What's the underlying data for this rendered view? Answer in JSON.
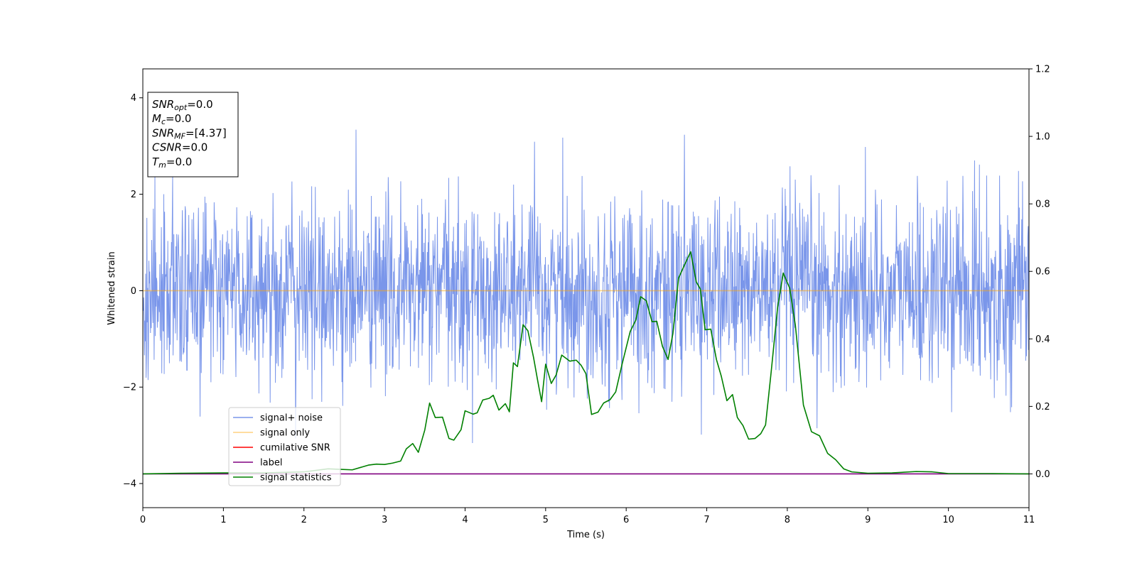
{
  "chart_data": {
    "type": "line",
    "xlabel": "Time (s)",
    "ylabel": "Whitened strain",
    "xlim": [
      0,
      11
    ],
    "ylim": [
      -4.5,
      4.6
    ],
    "y2lim": [
      -0.1,
      1.2
    ],
    "grid": false,
    "legend_position": "lower-left",
    "x_ticks": [
      0,
      1,
      2,
      3,
      4,
      5,
      6,
      7,
      8,
      9,
      10,
      11
    ],
    "y_ticks": [
      -4,
      -2,
      0,
      2,
      4
    ],
    "y_tick_labels": [
      "−4",
      "−2",
      "0",
      "2",
      "4"
    ],
    "y2_ticks": [
      0.0,
      0.2,
      0.4,
      0.6,
      0.8,
      1.0,
      1.2
    ],
    "y2_tick_labels": [
      "0.0",
      "0.2",
      "0.4",
      "0.6",
      "0.8",
      "1.0",
      "1.2"
    ],
    "colors": {
      "noise": "#4169e1",
      "signal_only": "#ffa500",
      "cumulative_snr": "#ff0000",
      "label": "#800080",
      "statistics": "#008000"
    },
    "series": [
      {
        "name": "signal+ noise",
        "axis": "left",
        "kind": "noise",
        "color": "#4169e1",
        "std": 0.95,
        "peak_min": -4.1,
        "peak_max": 4.2,
        "samples": 2200
      },
      {
        "name": "signal only",
        "axis": "left",
        "color": "#ffa500",
        "x": [
          0,
          11
        ],
        "y": [
          0,
          0
        ]
      },
      {
        "name": "cumilative SNR",
        "axis": "left",
        "color": "#ff0000",
        "x": [],
        "y": []
      },
      {
        "name": "label",
        "axis": "right",
        "color": "#800080",
        "x": [
          0,
          11
        ],
        "y": [
          0,
          0
        ]
      },
      {
        "name": "signal statistics",
        "axis": "right",
        "color": "#008000",
        "x": [
          0,
          0.5,
          1.0,
          1.5,
          2.0,
          2.3,
          2.4,
          2.6,
          2.8,
          2.9,
          3.0,
          3.1,
          3.2,
          3.27,
          3.35,
          3.42,
          3.5,
          3.56,
          3.63,
          3.72,
          3.8,
          3.86,
          3.95,
          4.0,
          4.1,
          4.15,
          4.22,
          4.3,
          4.35,
          4.42,
          4.5,
          4.55,
          4.6,
          4.65,
          4.72,
          4.78,
          4.85,
          4.9,
          4.95,
          5.0,
          5.07,
          5.13,
          5.2,
          5.3,
          5.38,
          5.44,
          5.5,
          5.57,
          5.65,
          5.72,
          5.8,
          5.87,
          5.95,
          6.05,
          6.12,
          6.18,
          6.25,
          6.32,
          6.38,
          6.45,
          6.52,
          6.58,
          6.65,
          6.72,
          6.8,
          6.87,
          6.92,
          6.98,
          7.05,
          7.12,
          7.18,
          7.25,
          7.32,
          7.38,
          7.45,
          7.52,
          7.6,
          7.67,
          7.73,
          7.8,
          7.88,
          7.95,
          8.03,
          8.1,
          8.2,
          8.3,
          8.4,
          8.5,
          8.6,
          8.7,
          8.8,
          9.0,
          9.3,
          9.6,
          9.8,
          10.0,
          10.5,
          11.0
        ],
        "y": [
          0.0,
          0.002,
          0.003,
          0.003,
          0.006,
          0.015,
          0.014,
          0.012,
          0.026,
          0.029,
          0.028,
          0.032,
          0.038,
          0.074,
          0.09,
          0.064,
          0.13,
          0.21,
          0.167,
          0.168,
          0.105,
          0.1,
          0.131,
          0.187,
          0.177,
          0.181,
          0.219,
          0.224,
          0.233,
          0.189,
          0.208,
          0.184,
          0.329,
          0.318,
          0.442,
          0.424,
          0.345,
          0.278,
          0.214,
          0.325,
          0.268,
          0.293,
          0.352,
          0.334,
          0.337,
          0.322,
          0.297,
          0.176,
          0.183,
          0.21,
          0.22,
          0.243,
          0.326,
          0.422,
          0.456,
          0.525,
          0.513,
          0.451,
          0.452,
          0.378,
          0.339,
          0.416,
          0.58,
          0.617,
          0.658,
          0.569,
          0.548,
          0.427,
          0.429,
          0.339,
          0.29,
          0.217,
          0.235,
          0.167,
          0.143,
          0.103,
          0.105,
          0.119,
          0.145,
          0.303,
          0.494,
          0.595,
          0.55,
          0.44,
          0.204,
          0.125,
          0.113,
          0.061,
          0.042,
          0.015,
          0.006,
          0.002,
          0.003,
          0.007,
          0.006,
          0.001,
          0.001,
          0.0
        ]
      }
    ]
  },
  "info_box": {
    "lines": [
      {
        "sym": "SNR",
        "sub": "opt",
        "val": "=0.0"
      },
      {
        "sym": "M",
        "sub": "c",
        "val": "=0.0"
      },
      {
        "sym": "SNR",
        "sub": "MF",
        "val": "=[4.37]"
      },
      {
        "sym": "CSNR",
        "sub": "",
        "val": "=0.0"
      },
      {
        "sym": "T",
        "sub": "m",
        "val": "=0.0"
      }
    ]
  },
  "legend": {
    "items": [
      {
        "label": "signal+ noise",
        "color": "#4169e1",
        "alpha": 0.7
      },
      {
        "label": "signal only",
        "color": "#ffa500",
        "alpha": 0.5
      },
      {
        "label": "cumilative SNR",
        "color": "#ff0000",
        "alpha": 1
      },
      {
        "label": "label",
        "color": "#800080",
        "alpha": 1
      },
      {
        "label": "signal statistics",
        "color": "#008000",
        "alpha": 1
      }
    ]
  }
}
